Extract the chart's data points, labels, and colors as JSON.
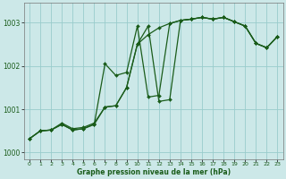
{
  "title": "Graphe pression niveau de la mer (hPa)",
  "bg_color": "#cce8e8",
  "grid_color": "#99cccc",
  "line_color": "#1a5c1a",
  "marker_color": "#1a5c1a",
  "ylim": [
    999.85,
    1003.45
  ],
  "xlim": [
    -0.5,
    23.5
  ],
  "yticks": [
    1000,
    1001,
    1002,
    1003
  ],
  "xticks": [
    0,
    1,
    2,
    3,
    4,
    5,
    6,
    7,
    8,
    9,
    10,
    11,
    12,
    13,
    14,
    15,
    16,
    17,
    18,
    19,
    20,
    21,
    22,
    23
  ],
  "series1": [
    1000.32,
    1000.5,
    1000.52,
    1000.68,
    1000.55,
    1000.58,
    1000.68,
    1001.05,
    1001.08,
    1001.5,
    1002.5,
    1002.72,
    1002.88,
    1002.98,
    1003.05,
    1003.08,
    1003.12,
    1003.08,
    1003.12,
    1003.02,
    1002.92,
    1002.52,
    1002.42,
    1002.68
  ],
  "series2": [
    1000.32,
    1000.5,
    1000.52,
    1000.65,
    1000.52,
    1000.55,
    1000.65,
    1002.05,
    1001.78,
    1001.85,
    1002.92,
    1001.28,
    1001.32,
    1002.98,
    1003.05,
    1003.08,
    1003.12,
    1003.08,
    1003.12,
    1003.02,
    1002.92,
    1002.52,
    1002.42,
    1002.68
  ],
  "series3": [
    1000.32,
    1000.5,
    1000.52,
    1000.65,
    1000.52,
    1000.55,
    1000.65,
    1001.05,
    1001.08,
    1001.5,
    1002.5,
    1002.92,
    1001.18,
    1001.22,
    1003.05,
    1003.08,
    1003.12,
    1003.08,
    1003.12,
    1003.02,
    1002.92,
    1002.52,
    1002.42,
    1002.68
  ]
}
